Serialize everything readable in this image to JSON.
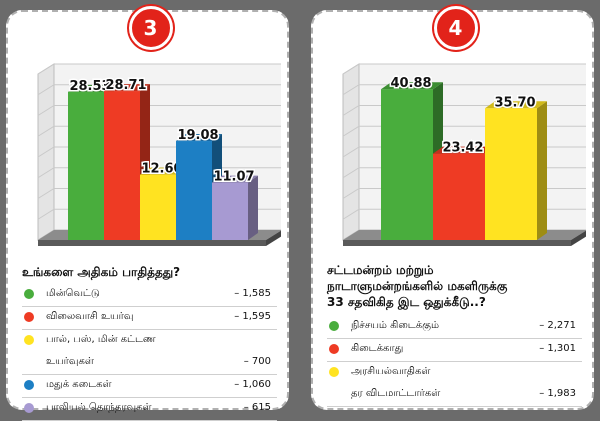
{
  "chart_data": [
    {
      "type": "bar",
      "badge": "3",
      "categories": [
        "மின்வெட்டு",
        "விலைவாசி உயர்வு",
        "பால், பஸ், மின் கட்டண உயர்வுகள்",
        "மதுக் கடைகள்",
        "பாலியல் தொந்தரவுகள்"
      ],
      "values": [
        28.53,
        28.71,
        12.6,
        19.08,
        11.07
      ],
      "value_labels": [
        "28.53",
        "28.71",
        "12.60",
        "19.08",
        "11.07"
      ],
      "colors": [
        "#49ad3d",
        "#ee3b24",
        "#ffe321",
        "#1d7fc4",
        "#a79ad2"
      ],
      "ylim": [
        0,
        32
      ],
      "grid": true,
      "title": "உங்களை அதிகம் பாதித்தது?",
      "legend": [
        {
          "label": "மின்வெட்டு",
          "value": "– 1,585",
          "color": "#49ad3d"
        },
        {
          "label": "விலைவாசி உயர்வு",
          "value": "– 1,595",
          "color": "#ee3b24"
        },
        {
          "label": "பால், பஸ், மின் கட்டண",
          "value": "",
          "color": "#ffe321"
        },
        {
          "label": "உயர்வுகள்",
          "value": "– 700",
          "color": ""
        },
        {
          "label": "மதுக் கடைகள்",
          "value": "– 1,060",
          "color": "#1d7fc4"
        },
        {
          "label": "பாலியல் தொந்தரவுகள்",
          "value": "– 615",
          "color": "#a79ad2"
        }
      ]
    },
    {
      "type": "bar",
      "badge": "4",
      "categories": [
        "நிச்சயம் கிடைக்கும்",
        "கிடைக்காது",
        "அரசியல்வாதிகள் தர விடமாட்டார்கள்"
      ],
      "values": [
        40.88,
        23.42,
        35.7
      ],
      "value_labels": [
        "40.88",
        "23.42",
        "35.70"
      ],
      "colors": [
        "#49ad3d",
        "#ee3b24",
        "#ffe321"
      ],
      "ylim": [
        0,
        45
      ],
      "grid": true,
      "title": "சட்டமன்றம் மற்றும் நாடாளுமன்றங்களில் மகளிருக்கு 33 சதவிகித இட ஒதுக்கீடு..?",
      "title_lines": [
        "சட்டமன்றம் மற்றும்",
        "நாடாளுமன்றங்களில் மகளிருக்கு",
        "33 சதவிகித இட ஒதுக்கீடு..?"
      ],
      "legend": [
        {
          "label": "நிச்சயம் கிடைக்கும்",
          "value": "– 2,271",
          "color": "#49ad3d"
        },
        {
          "label": "கிடைக்காது",
          "value": "– 1,301",
          "color": "#ee3b24"
        },
        {
          "label": "அரசியல்வாதிகள்",
          "value": "",
          "color": "#ffe321"
        },
        {
          "label": "தர விடமாட்டார்கள்",
          "value": "– 1,983",
          "color": ""
        }
      ]
    }
  ]
}
